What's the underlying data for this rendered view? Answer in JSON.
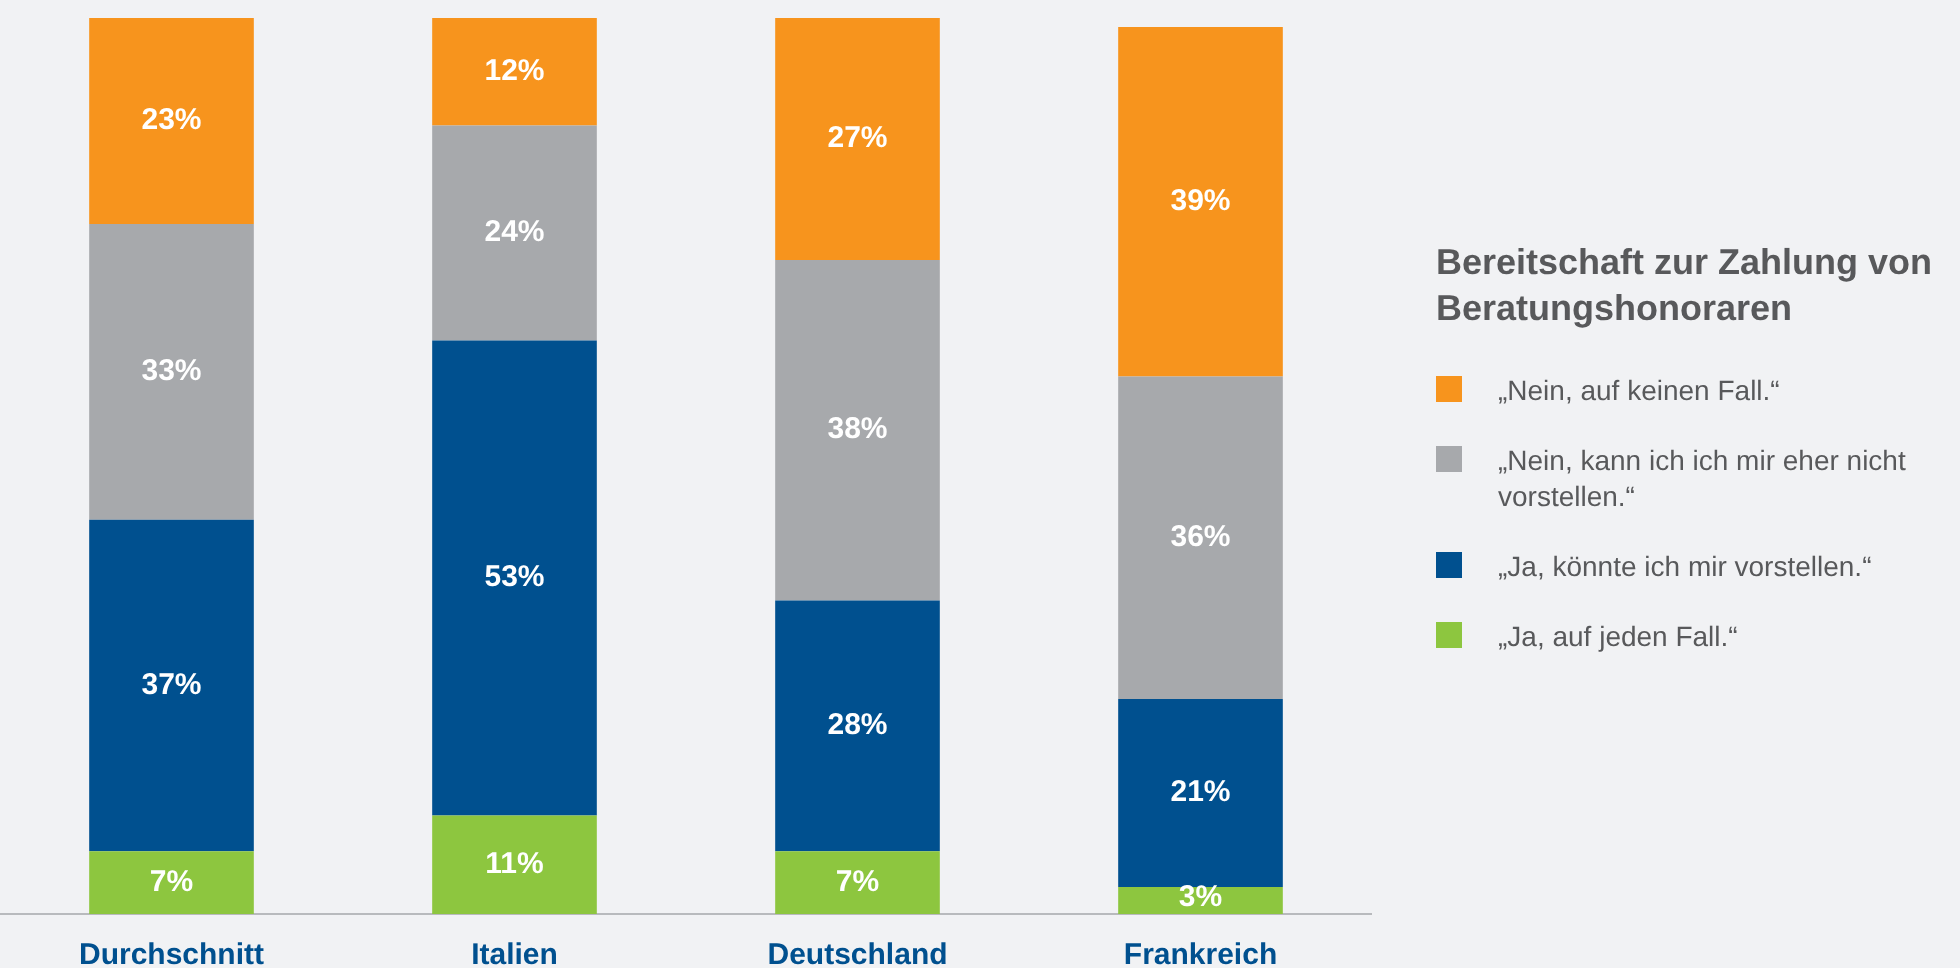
{
  "chart_data": {
    "type": "bar",
    "stacked": true,
    "legend": "right",
    "legend_title": "Bereitschaft zur Zahlung von Beratungshonoraren",
    "tick_labels": "x",
    "grid": false,
    "ylim": [
      0,
      100
    ],
    "categories": [
      "Durchschnitt",
      "Italien",
      "Deutschland",
      "Frankreich"
    ],
    "series": [
      {
        "name": "„Ja, auf jeden Fall.“",
        "color": "#8dc63f",
        "values": [
          7,
          11,
          7,
          3
        ],
        "value_labels": [
          "7%",
          "11%",
          "7%",
          "3%"
        ]
      },
      {
        "name": "„Ja, könnte ich mir vorstellen.“",
        "color": "#00508f",
        "values": [
          37,
          53,
          28,
          21
        ],
        "value_labels": [
          "37%",
          "53%",
          "28%",
          "21%"
        ]
      },
      {
        "name": "„Nein, kann ich ich mir eher nicht vorstellen.“",
        "color": "#a7a9ac",
        "values": [
          33,
          24,
          38,
          36
        ],
        "value_labels": [
          "33%",
          "24%",
          "38%",
          "36%"
        ]
      },
      {
        "name": "„Nein, auf keinen Fall.“",
        "color": "#f7941d",
        "values": [
          23,
          12,
          27,
          39
        ],
        "value_labels": [
          "23%",
          "12%",
          "27%",
          "39%"
        ]
      }
    ]
  }
}
